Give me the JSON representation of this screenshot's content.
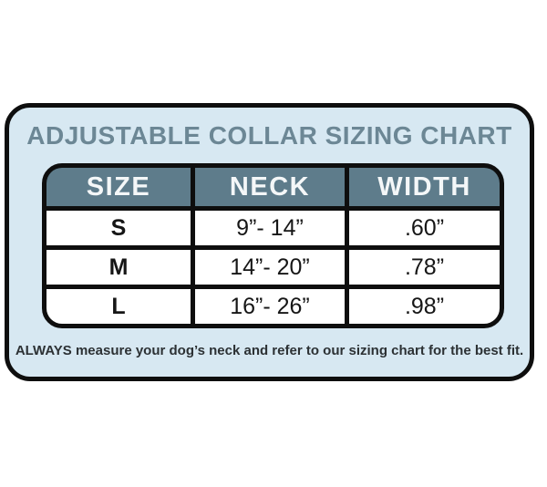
{
  "title": "ADJUSTABLE COLLAR SIZING CHART",
  "table": {
    "headers": [
      "SIZE",
      "NECK",
      "WIDTH"
    ],
    "rows": [
      {
        "size": "S",
        "neck": "9”- 14”",
        "width": ".60”"
      },
      {
        "size": "M",
        "neck": "14”- 20”",
        "width": ".78”"
      },
      {
        "size": "L",
        "neck": "16”- 26”",
        "width": ".98”"
      }
    ]
  },
  "footer": "ALWAYS measure your dog’s neck and refer to our sizing chart for the best fit.",
  "colors": {
    "card_background": "#d7e8f2",
    "header_background": "#5e7c8b",
    "title_text": "#6c8795",
    "border": "#0e0e0e",
    "header_text": "#f4f7f8",
    "cell_text": "#161616"
  },
  "chart_data": {
    "type": "table",
    "title": "ADJUSTABLE COLLAR SIZING CHART",
    "columns": [
      "SIZE",
      "NECK",
      "WIDTH"
    ],
    "rows": [
      [
        "S",
        "9”- 14”",
        ".60”"
      ],
      [
        "M",
        "14”- 20”",
        ".78”"
      ],
      [
        "L",
        "16”- 26”",
        ".98”"
      ]
    ],
    "units": "inches",
    "footnote": "ALWAYS measure your dog’s neck and refer to our sizing chart for the best fit."
  }
}
